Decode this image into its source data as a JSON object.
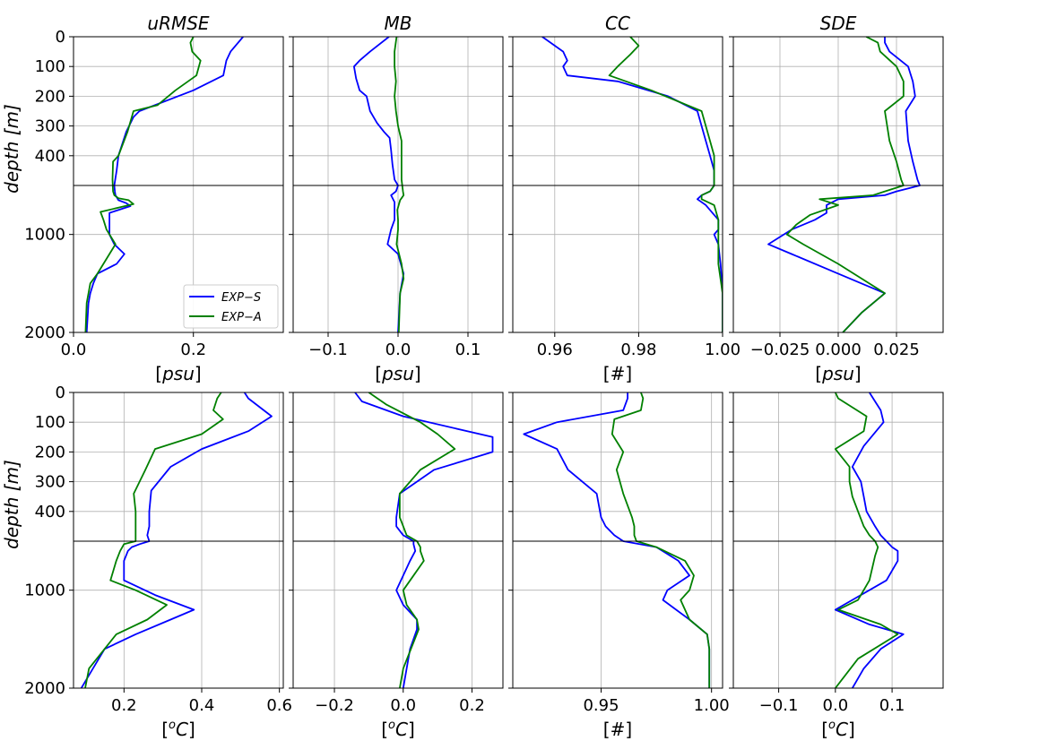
{
  "chart_data": [
    {
      "type": "line",
      "title": "uRMSE",
      "xlabel": "[psu]",
      "ylabel": "depth [m]",
      "xlim": [
        0,
        0.35
      ],
      "xticks": [
        {
          "v": 0,
          "label": "0.0"
        },
        {
          "v": 0.2,
          "label": "0.2"
        }
      ],
      "legend": {
        "position": "lower-right",
        "entries": [
          "EXP−S",
          "EXP−A"
        ]
      },
      "series": [
        {
          "name": "EXP−S",
          "color": "#0000ff",
          "x": [
            0.283,
            0.262,
            0.255,
            0.25,
            0.2,
            0.11,
            0.1,
            0.088,
            0.075,
            0.072,
            0.068,
            0.069,
            0.07,
            0.073,
            0.075,
            0.088,
            0.095,
            0.06,
            0.06,
            0.068,
            0.085,
            0.072,
            0.04,
            0.033,
            0.028,
            0.025,
            0.022
          ],
          "y": [
            0,
            50,
            80,
            130,
            180,
            250,
            270,
            320,
            400,
            450,
            500,
            560,
            600,
            630,
            650,
            680,
            710,
            780,
            1000,
            1100,
            1200,
            1300,
            1400,
            1500,
            1600,
            1700,
            2000
          ]
        },
        {
          "name": "EXP−A",
          "color": "#008000",
          "x": [
            0.2,
            0.195,
            0.198,
            0.212,
            0.205,
            0.17,
            0.14,
            0.1,
            0.09,
            0.075,
            0.066,
            0.065,
            0.066,
            0.068,
            0.075,
            0.092,
            0.1,
            0.045,
            0.05,
            0.055,
            0.07,
            0.06,
            0.04,
            0.028,
            0.025,
            0.022,
            0.02
          ],
          "y": [
            0,
            20,
            50,
            80,
            130,
            180,
            230,
            250,
            320,
            400,
            420,
            480,
            560,
            600,
            630,
            650,
            690,
            770,
            850,
            950,
            1100,
            1200,
            1400,
            1500,
            1600,
            1700,
            2000
          ]
        }
      ]
    },
    {
      "type": "line",
      "title": "MB",
      "xlabel": "[psu]",
      "xlim": [
        -0.15,
        0.15
      ],
      "xticks": [
        {
          "v": -0.1,
          "label": "−0.1"
        },
        {
          "v": 0,
          "label": "0.0"
        },
        {
          "v": 0.1,
          "label": "0.1"
        }
      ],
      "series": [
        {
          "name": "EXP−S",
          "color": "#0000ff",
          "x": [
            -0.013,
            -0.04,
            -0.055,
            -0.063,
            -0.06,
            -0.055,
            -0.045,
            -0.04,
            -0.03,
            -0.02,
            -0.012,
            -0.01,
            -0.008,
            -0.005,
            0.0,
            -0.003,
            -0.01,
            -0.005,
            -0.005,
            -0.01,
            -0.015,
            0.0,
            0.008,
            0.003,
            0.0
          ],
          "y": [
            0,
            50,
            80,
            100,
            140,
            180,
            200,
            250,
            290,
            320,
            340,
            380,
            430,
            480,
            500,
            560,
            600,
            670,
            850,
            950,
            1100,
            1200,
            1400,
            1600,
            2000
          ]
        },
        {
          "name": "EXP−A",
          "color": "#008000",
          "x": [
            -0.002,
            -0.005,
            -0.005,
            -0.003,
            -0.005,
            -0.003,
            0.0,
            0.005,
            0.005,
            0.005,
            0.005,
            0.006,
            0.007,
            0.008,
            0.005,
            0.003,
            -0.001,
            0.0,
            0.0,
            -0.002,
            0.005,
            0.008,
            0.003,
            0.001
          ],
          "y": [
            0,
            50,
            100,
            150,
            200,
            250,
            300,
            350,
            400,
            450,
            480,
            500,
            560,
            600,
            630,
            650,
            750,
            850,
            950,
            1100,
            1300,
            1450,
            1600,
            2000
          ]
        }
      ]
    },
    {
      "type": "line",
      "title": "CC",
      "xlabel": "[#]",
      "xlim": [
        0.95,
        1.0
      ],
      "xticks": [
        {
          "v": 0.96,
          "label": "0.96"
        },
        {
          "v": 0.98,
          "label": "0.98"
        },
        {
          "v": 1.0,
          "label": "1.00"
        }
      ],
      "series": [
        {
          "name": "EXP−S",
          "color": "#0000ff",
          "x": [
            0.957,
            0.962,
            0.963,
            0.962,
            0.963,
            0.975,
            0.987,
            0.994,
            0.996,
            0.997,
            0.998,
            0.998,
            0.998,
            0.997,
            0.995,
            0.994,
            0.996,
            0.999,
            0.999,
            0.998,
            0.999,
            0.9995,
            1.0,
            1.0
          ],
          "y": [
            0,
            50,
            80,
            100,
            130,
            150,
            200,
            250,
            350,
            400,
            450,
            480,
            500,
            560,
            600,
            640,
            700,
            850,
            950,
            1000,
            1100,
            1300,
            1600,
            2000
          ]
        },
        {
          "name": "EXP−A",
          "color": "#008000",
          "x": [
            0.978,
            0.98,
            0.978,
            0.975,
            0.973,
            0.983,
            0.995,
            0.997,
            0.998,
            0.998,
            0.998,
            0.997,
            0.995,
            0.995,
            0.998,
            0.999,
            0.999,
            0.999,
            1.0,
            1.0
          ],
          "y": [
            0,
            30,
            60,
            100,
            130,
            180,
            250,
            350,
            400,
            450,
            500,
            560,
            600,
            640,
            700,
            850,
            1000,
            1300,
            1600,
            2000
          ]
        }
      ]
    },
    {
      "type": "line",
      "title": "SDE",
      "xlabel": "[psu]",
      "xlim": [
        -0.045,
        0.045
      ],
      "xticks": [
        {
          "v": -0.025,
          "label": "−0.025"
        },
        {
          "v": 0,
          "label": "0.000"
        },
        {
          "v": 0.025,
          "label": "0.025"
        }
      ],
      "series": [
        {
          "name": "EXP−S",
          "color": "#0000ff",
          "x": [
            0.02,
            0.02,
            0.022,
            0.03,
            0.032,
            0.033,
            0.029,
            0.03,
            0.032,
            0.034,
            0.035,
            0.025,
            0.02,
            0.0,
            -0.005,
            -0.005,
            -0.01,
            -0.02,
            -0.03,
            -0.02,
            0.0,
            0.02,
            0.01,
            0.002
          ],
          "y": [
            0,
            20,
            50,
            100,
            150,
            200,
            250,
            350,
            420,
            480,
            500,
            560,
            600,
            640,
            700,
            780,
            850,
            950,
            1100,
            1200,
            1400,
            1600,
            1800,
            2000
          ]
        },
        {
          "name": "EXP−A",
          "color": "#008000",
          "x": [
            0.012,
            0.017,
            0.018,
            0.025,
            0.028,
            0.028,
            0.02,
            0.022,
            0.025,
            0.027,
            0.028,
            0.02,
            0.015,
            -0.008,
            0.0,
            -0.012,
            -0.018,
            -0.022,
            -0.015,
            0.0,
            0.02,
            0.01,
            0.002
          ],
          "y": [
            0,
            20,
            50,
            100,
            150,
            200,
            250,
            350,
            420,
            480,
            500,
            560,
            600,
            640,
            700,
            800,
            900,
            1000,
            1100,
            1300,
            1600,
            1800,
            2000
          ]
        }
      ]
    },
    {
      "type": "line",
      "xlabel": "[oC]",
      "ylabel": "depth [m]",
      "xlim": [
        0.07,
        0.61
      ],
      "xticks": [
        {
          "v": 0.2,
          "label": "0.2"
        },
        {
          "v": 0.4,
          "label": "0.4"
        },
        {
          "v": 0.6,
          "label": "0.6"
        }
      ],
      "series": [
        {
          "name": "EXP−S",
          "color": "#0000ff",
          "x": [
            0.51,
            0.52,
            0.58,
            0.52,
            0.4,
            0.32,
            0.27,
            0.265,
            0.265,
            0.26,
            0.265,
            0.24,
            0.22,
            0.21,
            0.2,
            0.2,
            0.28,
            0.38,
            0.32,
            0.23,
            0.15,
            0.12,
            0.09
          ],
          "y": [
            0,
            20,
            80,
            130,
            190,
            250,
            330,
            400,
            450,
            480,
            500,
            530,
            560,
            600,
            700,
            900,
            1050,
            1200,
            1300,
            1450,
            1600,
            1800,
            2000
          ]
        },
        {
          "name": "EXP−A",
          "color": "#008000",
          "x": [
            0.45,
            0.44,
            0.43,
            0.455,
            0.4,
            0.28,
            0.255,
            0.225,
            0.23,
            0.23,
            0.23,
            0.2,
            0.19,
            0.18,
            0.165,
            0.23,
            0.31,
            0.26,
            0.18,
            0.11,
            0.1
          ],
          "y": [
            0,
            20,
            60,
            90,
            140,
            190,
            260,
            340,
            400,
            480,
            500,
            530,
            600,
            700,
            900,
            1000,
            1150,
            1300,
            1450,
            1800,
            2000
          ]
        }
      ]
    },
    {
      "type": "line",
      "xlabel": "[oC]",
      "xlim": [
        -0.32,
        0.29
      ],
      "xticks": [
        {
          "v": -0.2,
          "label": "−0.2"
        },
        {
          "v": 0,
          "label": "0.0"
        },
        {
          "v": 0.2,
          "label": "0.2"
        }
      ],
      "series": [
        {
          "name": "EXP−S",
          "color": "#0000ff",
          "x": [
            -0.14,
            -0.12,
            0.0,
            0.26,
            0.26,
            0.09,
            -0.01,
            -0.02,
            -0.02,
            0.0,
            0.03,
            0.03,
            0.035,
            0.02,
            0.0,
            -0.02,
            0.0,
            0.04,
            0.04,
            0.02,
            0.0
          ],
          "y": [
            0,
            30,
            80,
            150,
            200,
            260,
            340,
            420,
            450,
            480,
            500,
            530,
            600,
            700,
            850,
            1000,
            1150,
            1300,
            1400,
            1600,
            2000
          ]
        },
        {
          "name": "EXP−A",
          "color": "#008000",
          "x": [
            -0.1,
            -0.05,
            0.05,
            0.1,
            0.15,
            0.05,
            -0.01,
            -0.01,
            0.0,
            0.01,
            0.04,
            0.05,
            0.05,
            0.06,
            0.03,
            0.0,
            0.01,
            0.04,
            0.045,
            0.0,
            -0.01
          ],
          "y": [
            0,
            40,
            100,
            140,
            190,
            260,
            340,
            420,
            450,
            480,
            500,
            560,
            600,
            700,
            850,
            1000,
            1150,
            1300,
            1400,
            1800,
            2000
          ]
        }
      ]
    },
    {
      "type": "line",
      "xlabel": "[#]",
      "xlim": [
        0.91,
        1.005
      ],
      "xticks": [
        {
          "v": 0.95,
          "label": "0.95"
        },
        {
          "v": 1.0,
          "label": "1.00"
        }
      ],
      "series": [
        {
          "name": "EXP−S",
          "color": "#0000ff",
          "x": [
            0.962,
            0.962,
            0.96,
            0.93,
            0.915,
            0.93,
            0.935,
            0.948,
            0.95,
            0.952,
            0.956,
            0.96,
            0.975,
            0.985,
            0.99,
            0.98,
            0.978,
            0.99,
            0.998,
            0.999,
            0.999
          ],
          "y": [
            0,
            20,
            60,
            100,
            140,
            190,
            260,
            340,
            420,
            450,
            480,
            500,
            560,
            700,
            850,
            1000,
            1100,
            1300,
            1450,
            1600,
            2000
          ]
        },
        {
          "name": "EXP−A",
          "color": "#008000",
          "x": [
            0.968,
            0.969,
            0.968,
            0.956,
            0.955,
            0.96,
            0.957,
            0.96,
            0.964,
            0.965,
            0.965,
            0.966,
            0.975,
            0.988,
            0.992,
            0.99,
            0.986,
            0.99,
            0.998,
            0.999,
            0.999
          ],
          "y": [
            0,
            20,
            60,
            90,
            140,
            200,
            260,
            340,
            420,
            450,
            480,
            500,
            560,
            700,
            850,
            1000,
            1100,
            1300,
            1450,
            1600,
            2000
          ]
        }
      ]
    },
    {
      "type": "line",
      "xlabel": "[oC]",
      "xlim": [
        -0.18,
        0.19
      ],
      "xticks": [
        {
          "v": -0.1,
          "label": "−0.1"
        },
        {
          "v": 0,
          "label": "0.0"
        },
        {
          "v": 0.1,
          "label": "0.1"
        }
      ],
      "series": [
        {
          "name": "EXP−S",
          "color": "#0000ff",
          "x": [
            0.06,
            0.07,
            0.08,
            0.085,
            0.05,
            0.03,
            0.045,
            0.05,
            0.055,
            0.07,
            0.08,
            0.09,
            0.1,
            0.11,
            0.11,
            0.09,
            0.0,
            0.06,
            0.12,
            0.08,
            0.05,
            0.03
          ],
          "y": [
            0,
            30,
            60,
            100,
            180,
            250,
            300,
            350,
            400,
            450,
            480,
            500,
            560,
            600,
            700,
            900,
            1200,
            1350,
            1450,
            1600,
            1800,
            2000
          ]
        },
        {
          "name": "EXP−A",
          "color": "#008000",
          "x": [
            0.0,
            0.005,
            0.03,
            0.055,
            0.05,
            0.0,
            0.025,
            0.025,
            0.03,
            0.04,
            0.05,
            0.06,
            0.07,
            0.075,
            0.07,
            0.06,
            0.04,
            0.005,
            0.08,
            0.11,
            0.04,
            0.0
          ],
          "y": [
            0,
            20,
            50,
            80,
            130,
            190,
            250,
            300,
            350,
            400,
            450,
            480,
            500,
            560,
            650,
            900,
            1100,
            1200,
            1350,
            1450,
            1700,
            2000
          ]
        }
      ]
    }
  ]
}
